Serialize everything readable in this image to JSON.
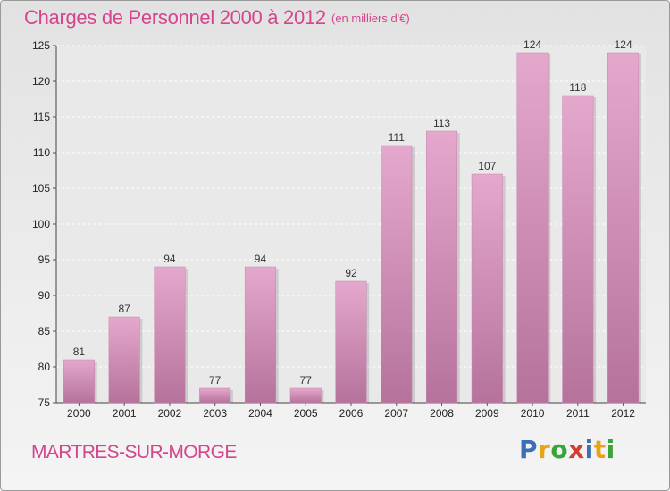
{
  "title": "Charges de Personnel 2000 à 2012",
  "subtitle": "(en milliers d'€)",
  "commune": "MARTRES-SUR-MORGE",
  "logo": {
    "letters": [
      "P",
      "r",
      "o",
      "x",
      "i",
      "t",
      "i"
    ],
    "colors": [
      "#3d6fb6",
      "#e8a317",
      "#3aa33a",
      "#d63b2f",
      "#3d6fb6",
      "#e8a317",
      "#3aa33a"
    ]
  },
  "colors": {
    "accent": "#d4458e",
    "bar_top": "#e5a8cd",
    "bar_bottom": "#b5739b"
  },
  "chart_data": {
    "type": "bar",
    "title": "Charges de Personnel 2000 à 2012",
    "subtitle": "(en milliers d'€)",
    "categories": [
      "2000",
      "2001",
      "2002",
      "2003",
      "2004",
      "2005",
      "2006",
      "2007",
      "2008",
      "2009",
      "2010",
      "2011",
      "2012"
    ],
    "values": [
      81,
      87,
      94,
      77,
      94,
      77,
      92,
      111,
      113,
      107,
      124,
      118,
      124
    ],
    "ylim": [
      75,
      125
    ],
    "yticks": [
      75,
      80,
      85,
      90,
      95,
      100,
      105,
      110,
      115,
      120,
      125
    ],
    "grid": true,
    "data_labels": true,
    "xlabel": "",
    "ylabel": ""
  }
}
